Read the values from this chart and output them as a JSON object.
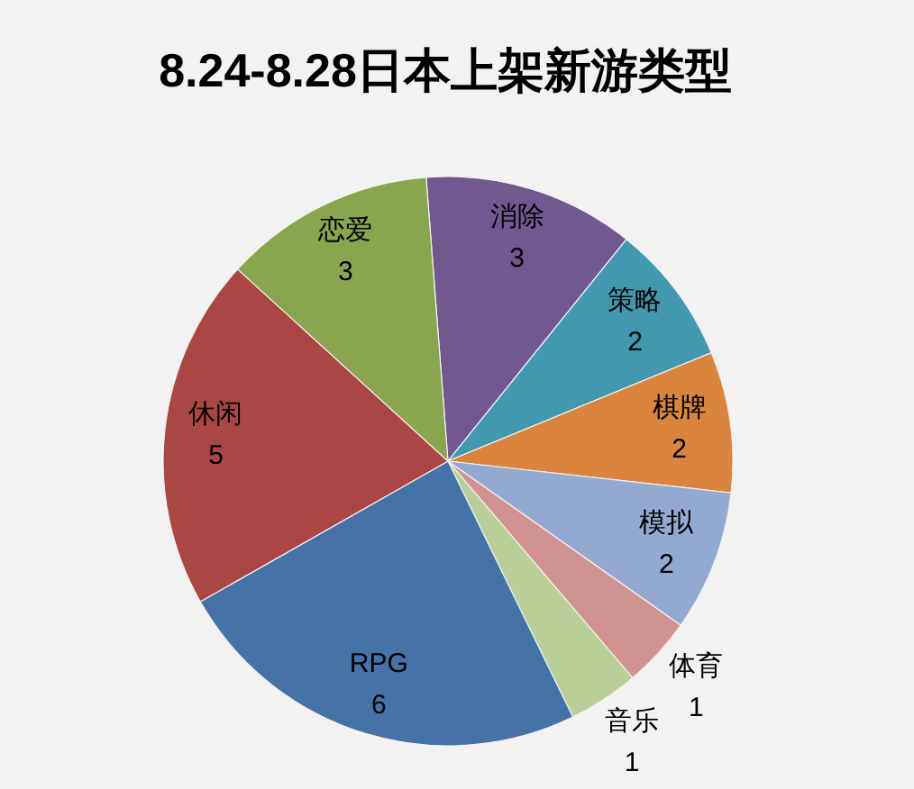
{
  "chart_data": {
    "type": "pie",
    "title": "8.24-8.28日本上架新游类型",
    "categories": [
      "消除",
      "策略",
      "棋牌",
      "模拟",
      "体育",
      "音乐",
      "RPG",
      "休闲",
      "恋爱"
    ],
    "values": [
      3,
      2,
      2,
      2,
      1,
      1,
      6,
      5,
      3
    ],
    "colors": [
      "#71588f",
      "#4198af",
      "#db843d",
      "#93a9cf",
      "#d19392",
      "#b9cd96",
      "#4572a7",
      "#aa4643",
      "#89a54e"
    ],
    "data_labels": true
  }
}
